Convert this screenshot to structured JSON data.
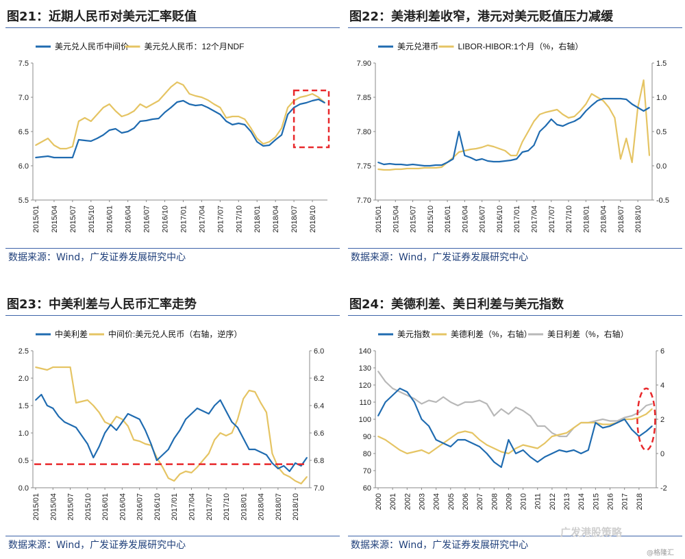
{
  "panels": [
    {
      "title": "图21：近期人民币对美元汇率贬值",
      "source": "数据来源：Wind，广发证券发展研究中心"
    },
    {
      "title": "图22：美港利差收窄，港元对美元贬值压力减缓",
      "source": "数据来源：Wind，广发证券发展研究中心"
    },
    {
      "title": "图23：中美利差与人民币汇率走势",
      "source": "数据来源：Wind，广发证券发展研究中心"
    },
    {
      "title": "图24：美德利差、美日利差与美元指数",
      "source": "数据来源：Wind，广发证券发展研究中心"
    }
  ],
  "watermark": {
    "text": "广发港股策略",
    "sub": "@格隆汇"
  },
  "colors": {
    "blue": "#1f6bb0",
    "gold": "#e5c463",
    "gray": "#b8b8b8",
    "red": "#e8282b"
  },
  "chart_data": [
    {
      "type": "line",
      "title": "图21：近期人民币对美元汇率贬值",
      "x_ticks": [
        "2015/01",
        "2015/04",
        "2015/07",
        "2015/10",
        "2016/01",
        "2016/04",
        "2016/07",
        "2016/10",
        "2017/01",
        "2017/04",
        "2017/07",
        "2017/10",
        "2018/01",
        "2018/04",
        "2018/07",
        "2018/10"
      ],
      "ylim": [
        5.5,
        7.5
      ],
      "y_ticks": [
        "5.5",
        "6.0",
        "6.5",
        "7.0",
        "7.5"
      ],
      "legend": [
        "美元兑人民币中间价",
        "美元兑人民币：12个月NDF"
      ],
      "x_months": [
        0,
        1,
        2,
        3,
        4,
        5,
        6,
        7,
        8,
        9,
        10,
        11,
        12,
        13,
        14,
        15,
        16,
        17,
        18,
        19,
        20,
        21,
        22,
        23,
        24,
        25,
        26,
        27,
        28,
        29,
        30,
        31,
        32,
        33,
        34,
        35,
        36,
        37,
        38,
        39,
        40,
        41,
        42,
        43,
        44,
        45,
        46,
        47
      ],
      "series": [
        {
          "name": "美元兑人民币中间价",
          "color": "blue",
          "values": [
            6.12,
            6.13,
            6.14,
            6.12,
            6.12,
            6.12,
            6.12,
            6.38,
            6.37,
            6.36,
            6.4,
            6.45,
            6.52,
            6.54,
            6.48,
            6.5,
            6.55,
            6.65,
            6.66,
            6.68,
            6.69,
            6.78,
            6.85,
            6.93,
            6.95,
            6.9,
            6.88,
            6.89,
            6.85,
            6.8,
            6.75,
            6.65,
            6.6,
            6.62,
            6.6,
            6.5,
            6.35,
            6.29,
            6.3,
            6.38,
            6.45,
            6.75,
            6.85,
            6.9,
            6.92,
            6.95,
            6.97,
            6.92
          ]
        },
        {
          "name": "美元兑人民币：12个月NDF",
          "color": "gold",
          "values": [
            6.3,
            6.35,
            6.4,
            6.3,
            6.25,
            6.25,
            6.28,
            6.65,
            6.7,
            6.65,
            6.75,
            6.85,
            6.9,
            6.8,
            6.72,
            6.75,
            6.8,
            6.9,
            6.85,
            6.9,
            6.95,
            7.05,
            7.15,
            7.22,
            7.18,
            7.05,
            7.02,
            7.0,
            6.96,
            6.9,
            6.85,
            6.7,
            6.72,
            6.72,
            6.68,
            6.55,
            6.4,
            6.32,
            6.35,
            6.42,
            6.55,
            6.85,
            6.95,
            7.0,
            7.02,
            7.05,
            7.0,
            6.92
          ]
        }
      ],
      "annotation": "dashed-box"
    },
    {
      "type": "line",
      "title": "图22：美港利差收窄，港元对美元贬值压力减缓",
      "x_ticks": [
        "2015/01",
        "2015/04",
        "2015/07",
        "2015/10",
        "2016/01",
        "2016/04",
        "2016/07",
        "2016/10",
        "2017/01",
        "2017/04",
        "2017/07",
        "2017/10",
        "2018/01",
        "2018/04",
        "2018/07",
        "2018/10"
      ],
      "ylim": [
        7.7,
        7.9
      ],
      "y_ticks": [
        "7.70",
        "7.75",
        "7.80",
        "7.85",
        "7.90"
      ],
      "y2lim": [
        -0.5,
        1.5
      ],
      "y2_ticks": [
        "-0.5",
        "0.0",
        "0.5",
        "1.0",
        "1.5"
      ],
      "legend": [
        "美元兑港币",
        "LIBOR-HIBOR:1个月（%，右轴）"
      ],
      "x_months": [
        0,
        1,
        2,
        3,
        4,
        5,
        6,
        7,
        8,
        9,
        10,
        11,
        12,
        13,
        14,
        15,
        16,
        17,
        18,
        19,
        20,
        21,
        22,
        23,
        24,
        25,
        26,
        27,
        28,
        29,
        30,
        31,
        32,
        33,
        34,
        35,
        36,
        37,
        38,
        39,
        40,
        41,
        42,
        43,
        44,
        45,
        46,
        47
      ],
      "series": [
        {
          "name": "美元兑港币",
          "color": "blue",
          "values": [
            7.755,
            7.752,
            7.753,
            7.752,
            7.752,
            7.751,
            7.752,
            7.751,
            7.75,
            7.75,
            7.751,
            7.751,
            7.755,
            7.76,
            7.8,
            7.765,
            7.762,
            7.758,
            7.76,
            7.757,
            7.756,
            7.756,
            7.757,
            7.758,
            7.76,
            7.77,
            7.772,
            7.78,
            7.8,
            7.808,
            7.818,
            7.81,
            7.808,
            7.812,
            7.815,
            7.82,
            7.83,
            7.838,
            7.845,
            7.848,
            7.848,
            7.848,
            7.848,
            7.847,
            7.84,
            7.835,
            7.83,
            7.835
          ]
        },
        {
          "name": "LIBOR-HIBOR:1个月（%，右轴）",
          "color": "gold",
          "axis": "right",
          "values": [
            -0.05,
            -0.06,
            -0.06,
            -0.05,
            -0.05,
            -0.04,
            -0.04,
            -0.04,
            -0.03,
            -0.03,
            -0.03,
            -0.02,
            0.05,
            0.12,
            0.2,
            0.22,
            0.24,
            0.25,
            0.27,
            0.3,
            0.28,
            0.25,
            0.22,
            0.15,
            0.15,
            0.35,
            0.5,
            0.65,
            0.75,
            0.78,
            0.8,
            0.82,
            0.75,
            0.7,
            0.72,
            0.8,
            0.9,
            1.05,
            1.0,
            0.95,
            0.85,
            0.7,
            0.1,
            0.4,
            0.05,
            0.85,
            1.25,
            0.15
          ]
        }
      ]
    },
    {
      "type": "line",
      "title": "图23：中美利差与人民币汇率走势",
      "x_ticks": [
        "2015/01",
        "2015/04",
        "2015/07",
        "2015/10",
        "2016/01",
        "2016/04",
        "2016/07",
        "2016/10",
        "2017/01",
        "2017/04",
        "2017/07",
        "2017/10",
        "2018/01",
        "2018/04",
        "2018/07",
        "2018/10"
      ],
      "ylim": [
        0.0,
        2.5
      ],
      "y_ticks": [
        "0.0",
        "0.5",
        "1.0",
        "1.5",
        "2.0",
        "2.5"
      ],
      "y2lim": [
        6.0,
        7.0
      ],
      "y2_ticks": [
        "6.0",
        "6.2",
        "6.4",
        "6.6",
        "6.8",
        "7.0"
      ],
      "y2_inverted": true,
      "legend": [
        "中美利差",
        "中间价:美元兑人民币（右轴，逆序）"
      ],
      "x_months": [
        0,
        1,
        2,
        3,
        4,
        5,
        6,
        7,
        8,
        9,
        10,
        11,
        12,
        13,
        14,
        15,
        16,
        17,
        18,
        19,
        20,
        21,
        22,
        23,
        24,
        25,
        26,
        27,
        28,
        29,
        30,
        31,
        32,
        33,
        34,
        35,
        36,
        37,
        38,
        39,
        40,
        41,
        42,
        43,
        44,
        45,
        46,
        47
      ],
      "series": [
        {
          "name": "中美利差",
          "color": "blue",
          "values": [
            1.6,
            1.7,
            1.5,
            1.45,
            1.3,
            1.2,
            1.15,
            1.1,
            0.95,
            0.8,
            0.55,
            0.75,
            1.0,
            1.15,
            1.05,
            1.2,
            1.35,
            1.3,
            1.25,
            1.05,
            0.8,
            0.5,
            0.6,
            0.7,
            0.9,
            1.05,
            1.25,
            1.35,
            1.45,
            1.4,
            1.35,
            1.5,
            1.6,
            1.4,
            1.2,
            1.1,
            0.9,
            0.7,
            0.7,
            0.65,
            0.6,
            0.45,
            0.35,
            0.4,
            0.3,
            0.45,
            0.4,
            0.55
          ]
        },
        {
          "name": "中间价:美元兑人民币（右轴，逆序）",
          "color": "gold",
          "axis": "right",
          "values": [
            6.12,
            6.13,
            6.14,
            6.12,
            6.12,
            6.12,
            6.12,
            6.38,
            6.37,
            6.36,
            6.4,
            6.45,
            6.52,
            6.54,
            6.48,
            6.5,
            6.55,
            6.65,
            6.66,
            6.68,
            6.69,
            6.78,
            6.85,
            6.93,
            6.95,
            6.9,
            6.88,
            6.89,
            6.85,
            6.8,
            6.75,
            6.65,
            6.6,
            6.62,
            6.6,
            6.5,
            6.35,
            6.29,
            6.3,
            6.38,
            6.45,
            6.75,
            6.85,
            6.9,
            6.92,
            6.95,
            6.97,
            6.92
          ]
        }
      ],
      "reference_line": 0.43
    },
    {
      "type": "line",
      "title": "图24：美德利差、美日利差与美元指数",
      "x_ticks": [
        "2000",
        "2001",
        "2002",
        "2003",
        "2004",
        "2005",
        "2006",
        "2007",
        "2008",
        "2009",
        "2010",
        "2011",
        "2012",
        "2013",
        "2014",
        "2015",
        "2016",
        "2017",
        "2018"
      ],
      "ylim": [
        60,
        140
      ],
      "y_ticks": [
        "60",
        "70",
        "80",
        "90",
        "100",
        "110",
        "120",
        "130",
        "140"
      ],
      "y2lim": [
        -2,
        6
      ],
      "y2_ticks": [
        "-2",
        "0",
        "2",
        "4",
        "6"
      ],
      "legend": [
        "美元指数",
        "美德利差（%，右轴）",
        "美日利差（%，右轴）"
      ],
      "x_years": [
        2000.0,
        2000.5,
        2001.0,
        2001.5,
        2002.0,
        2002.5,
        2003.0,
        2003.5,
        2004.0,
        2004.5,
        2005.0,
        2005.5,
        2006.0,
        2006.5,
        2007.0,
        2007.5,
        2008.0,
        2008.5,
        2009.0,
        2009.5,
        2010.0,
        2010.5,
        2011.0,
        2011.5,
        2012.0,
        2012.5,
        2013.0,
        2013.5,
        2014.0,
        2014.5,
        2015.0,
        2015.5,
        2016.0,
        2016.5,
        2017.0,
        2017.5,
        2018.0,
        2018.5,
        2018.9
      ],
      "series": [
        {
          "name": "美元指数",
          "color": "blue",
          "values": [
            102,
            110,
            114,
            118,
            116,
            110,
            100,
            96,
            88,
            86,
            84,
            88,
            88,
            86,
            84,
            80,
            75,
            72,
            88,
            80,
            82,
            78,
            75,
            78,
            80,
            82,
            81,
            82,
            80,
            82,
            98,
            95,
            96,
            98,
            100,
            94,
            90,
            93,
            96
          ]
        },
        {
          "name": "美德利差（%，右轴）",
          "color": "gold",
          "axis": "right",
          "values": [
            1.0,
            0.8,
            0.5,
            0.2,
            0.0,
            0.1,
            0.2,
            0.0,
            0.3,
            0.6,
            0.9,
            1.2,
            1.3,
            1.2,
            0.8,
            0.5,
            0.3,
            0.1,
            0.0,
            0.3,
            0.5,
            0.4,
            0.3,
            0.6,
            1.0,
            1.1,
            1.2,
            1.5,
            1.8,
            1.8,
            1.8,
            1.7,
            1.7,
            1.8,
            2.0,
            2.0,
            2.1,
            2.3,
            2.6
          ]
        },
        {
          "name": "美日利差（%，右轴）",
          "color": "gray",
          "axis": "right",
          "values": [
            4.8,
            4.2,
            3.8,
            3.6,
            3.4,
            3.2,
            2.9,
            3.1,
            3.0,
            3.3,
            3.0,
            2.8,
            3.0,
            3.0,
            3.1,
            2.9,
            2.2,
            2.6,
            2.3,
            2.7,
            2.5,
            2.2,
            1.6,
            1.6,
            1.2,
            1.0,
            1.0,
            1.5,
            1.8,
            1.8,
            1.9,
            2.0,
            1.9,
            1.9,
            2.1,
            2.2,
            2.4,
            2.8,
            2.9
          ]
        }
      ],
      "annotation": "dashed-ellipse"
    }
  ]
}
